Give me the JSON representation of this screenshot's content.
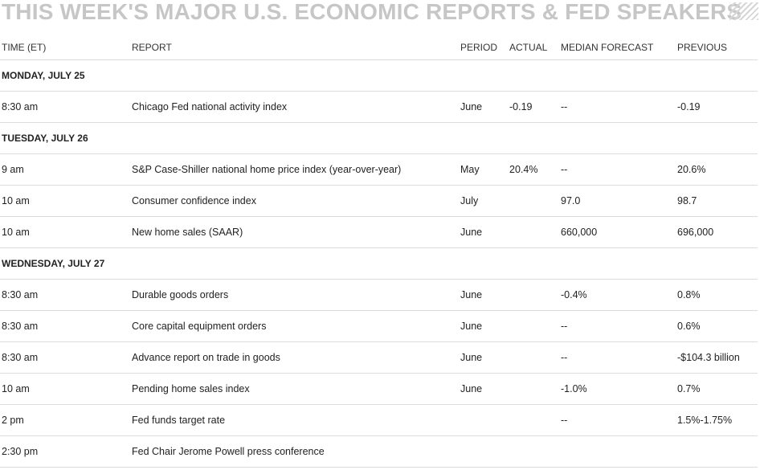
{
  "title": "THIS WEEK'S MAJOR U.S. ECONOMIC REPORTS & FED SPEAKERS",
  "columns": {
    "time": "TIME (ET)",
    "report": "REPORT",
    "period": "PERIOD",
    "actual": "ACTUAL",
    "median": "MEDIAN FORECAST",
    "previous": "PREVIOUS"
  },
  "days": [
    {
      "label": "MONDAY, JULY 25",
      "rows": [
        {
          "time": "8:30 am",
          "report": "Chicago Fed national activity index",
          "period": "June",
          "actual": "-0.19",
          "median": "--",
          "previous": "-0.19"
        }
      ]
    },
    {
      "label": "TUESDAY, JULY 26",
      "rows": [
        {
          "time": "9 am",
          "report": "S&P Case-Shiller national home price index (year-over-year)",
          "period": "May",
          "actual": "20.4%",
          "median": "--",
          "previous": "20.6%"
        },
        {
          "time": "10 am",
          "report": "Consumer confidence index",
          "period": "July",
          "actual": "",
          "median": "97.0",
          "previous": "98.7"
        },
        {
          "time": "10 am",
          "report": "New home sales (SAAR)",
          "period": "June",
          "actual": "",
          "median": "660,000",
          "previous": "696,000"
        }
      ]
    },
    {
      "label": "WEDNESDAY, JULY 27",
      "rows": [
        {
          "time": "8:30 am",
          "report": "Durable goods orders",
          "period": "June",
          "actual": "",
          "median": "-0.4%",
          "previous": "0.8%"
        },
        {
          "time": "8:30 am",
          "report": "Core capital equipment orders",
          "period": "June",
          "actual": "",
          "median": "--",
          "previous": "0.6%"
        },
        {
          "time": "8:30 am",
          "report": "Advance report on trade in goods",
          "period": "June",
          "actual": "",
          "median": "--",
          "previous": "-$104.3 billion"
        },
        {
          "time": "10 am",
          "report": "Pending home sales index",
          "period": "June",
          "actual": "",
          "median": "-1.0%",
          "previous": "0.7%"
        },
        {
          "time": "2 pm",
          "report": "Fed funds target rate",
          "period": "",
          "actual": "",
          "median": "--",
          "previous": "1.5%-1.75%"
        },
        {
          "time": "2:30 pm",
          "report": "Fed Chair Jerome Powell press conference",
          "period": "",
          "actual": "",
          "median": "",
          "previous": ""
        }
      ]
    }
  ]
}
